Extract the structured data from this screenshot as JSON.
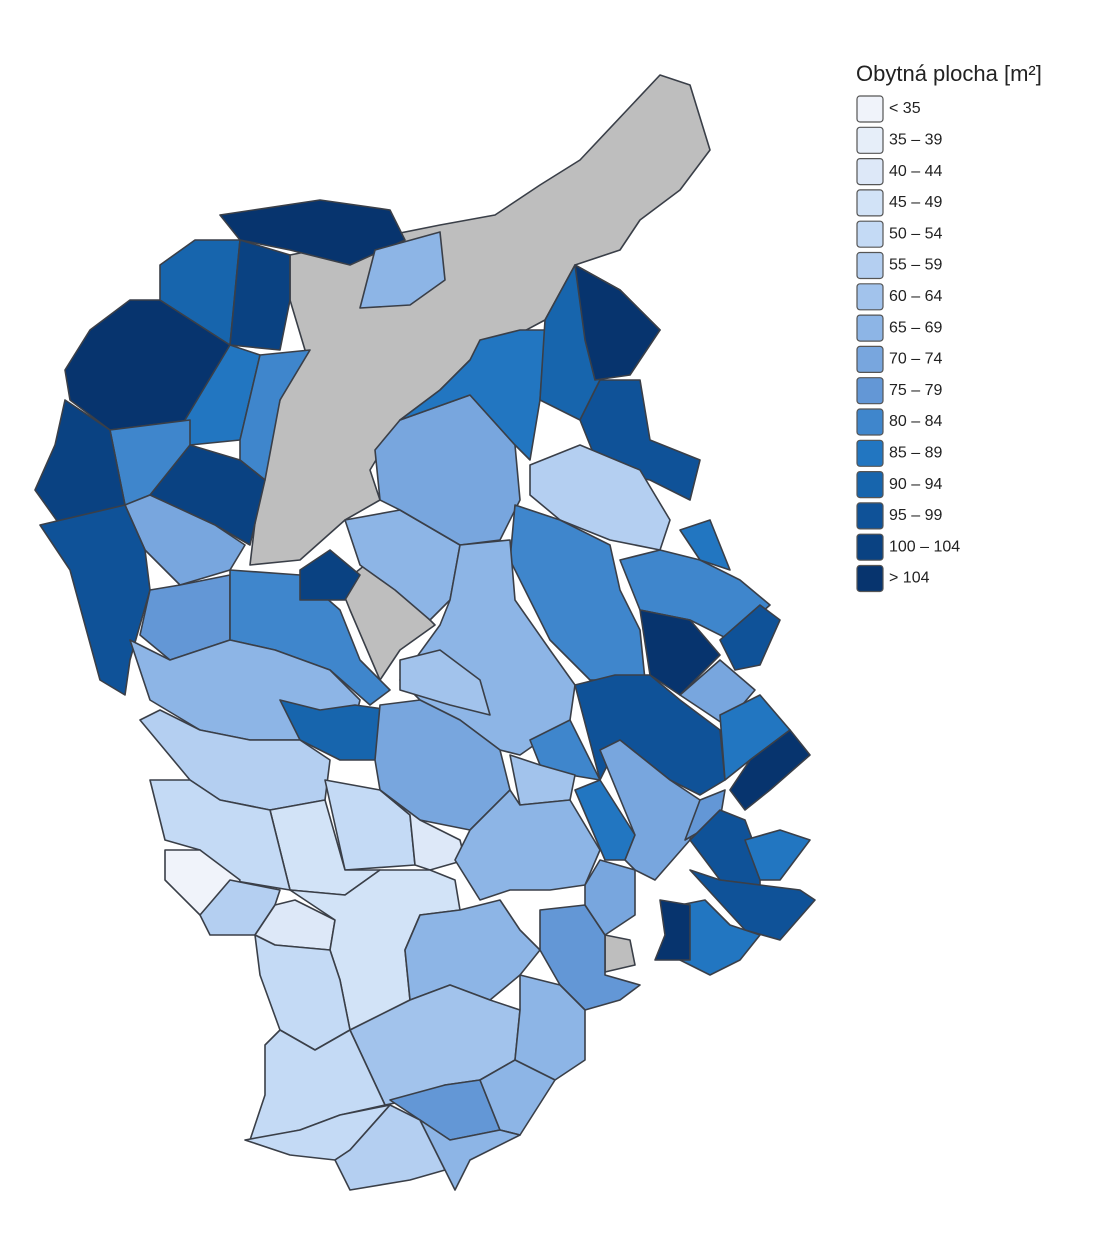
{
  "legend": {
    "title": "Obytná plocha [m²]",
    "items": [
      {
        "label": "< 35",
        "color": "#f0f3fa"
      },
      {
        "label": "35 – 39",
        "color": "#e6eef9"
      },
      {
        "label": "40 – 44",
        "color": "#dde8f8"
      },
      {
        "label": "45 – 49",
        "color": "#d2e3f7"
      },
      {
        "label": "50 – 54",
        "color": "#c4daf5"
      },
      {
        "label": "55 – 59",
        "color": "#b4cff1"
      },
      {
        "label": "60 – 64",
        "color": "#a2c3ec"
      },
      {
        "label": "65 – 69",
        "color": "#8db5e6"
      },
      {
        "label": "70 – 74",
        "color": "#78a6de"
      },
      {
        "label": "75 – 79",
        "color": "#6397d6"
      },
      {
        "label": "80 – 84",
        "color": "#3f86cc"
      },
      {
        "label": "85 – 89",
        "color": "#2276c1"
      },
      {
        "label": "90 – 94",
        "color": "#1765ad"
      },
      {
        "label": "95 – 99",
        "color": "#0f5298"
      },
      {
        "label": "100 – 104",
        "color": "#0a4282"
      },
      {
        "label": "> 104",
        "color": "#07346e"
      }
    ]
  }
}
